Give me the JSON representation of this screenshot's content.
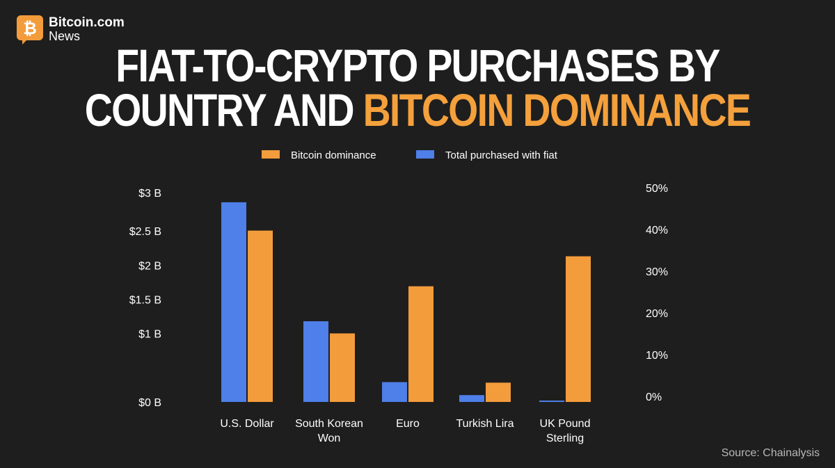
{
  "brand": {
    "name": "Bitcoin.com",
    "sub": "News"
  },
  "title": {
    "line1": "FIAT-TO-CRYPTO PURCHASES BY",
    "line2_white": "COUNTRY AND ",
    "line2_accent": "BITCOIN DOMINANCE"
  },
  "source": "Source: Chainalysis",
  "colors": {
    "background": "#1e1e1e",
    "orange": "#f39c3b",
    "blue": "#4f7fe8",
    "text": "#ffffff"
  },
  "chart_data": {
    "type": "bar",
    "categories": [
      [
        "U.S. Dollar"
      ],
      [
        "South Korean",
        "Won"
      ],
      [
        "Euro"
      ],
      [
        "Turkish Lira"
      ],
      [
        "UK Pound",
        "Sterling"
      ]
    ],
    "series": [
      {
        "name": "Total purchased with fiat",
        "axis": "left",
        "color": "#4f7fe8",
        "values": [
          2.92,
          1.18,
          0.29,
          0.1,
          0.02
        ]
      },
      {
        "name": "Bitcoin dominance",
        "axis": "right",
        "color": "#f39c3b",
        "values": [
          40,
          16,
          27,
          4.5,
          34
        ]
      }
    ],
    "legend_order": [
      "Bitcoin dominance",
      "Total purchased with fiat"
    ],
    "legend_position": "top-center",
    "left_axis": {
      "ticks": [
        0,
        0.5,
        1,
        1.5,
        2,
        2.5,
        3
      ],
      "labels": [
        "$0 B",
        "$1 B",
        "$1.5 B",
        "$2 B",
        "$2.5 B",
        "$3 B"
      ],
      "label_values": [
        0,
        1,
        1.5,
        2,
        2.5,
        3
      ],
      "ylim": [
        0,
        3
      ]
    },
    "right_axis": {
      "labels": [
        "0%",
        "10%",
        "20%",
        "30%",
        "40%",
        "50%"
      ],
      "label_values": [
        0,
        10,
        20,
        30,
        40,
        50
      ],
      "ylim": [
        0,
        50
      ]
    },
    "grid": false
  }
}
